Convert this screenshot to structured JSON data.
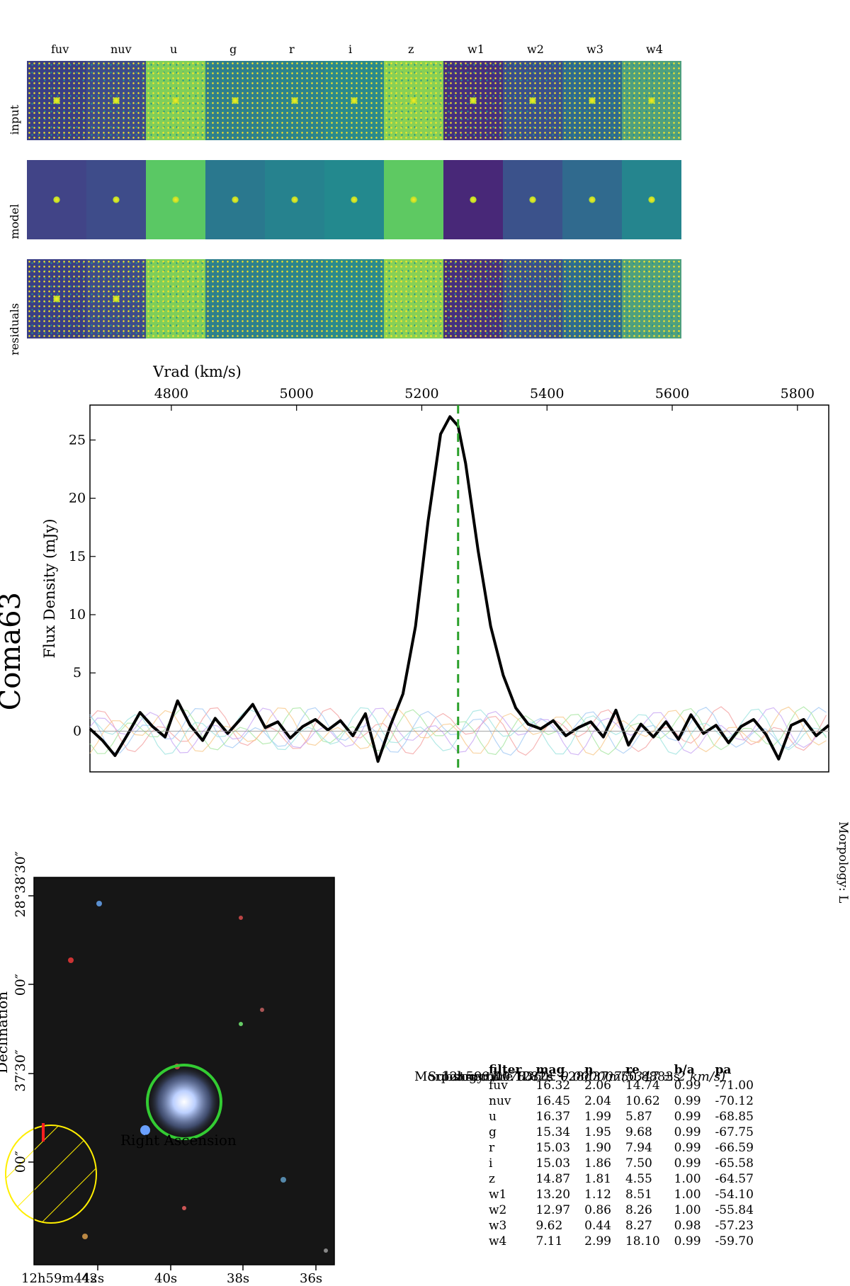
{
  "title": "Coma63",
  "sky_image": {
    "ylabel": "Declination",
    "xlabel": "Right Ascension",
    "y_ticks": [
      "28°38′30″",
      "00″",
      "37′30″",
      "00″"
    ],
    "x_ticks": [
      "12h59m44s",
      "42s",
      "40s",
      "38s",
      "36s"
    ],
    "colors": {
      "circle": "#33cc33",
      "beam": "#ffee00",
      "marker": "#ff2020",
      "background": "#161616"
    }
  },
  "cutouts": {
    "filters": [
      "fuv",
      "nuv",
      "u",
      "g",
      "r",
      "i",
      "z",
      "w1",
      "w2",
      "w3",
      "w4"
    ],
    "row_labels": [
      "input",
      "model",
      "residuals"
    ],
    "model_colors": [
      "#414487",
      "#3e4c8a",
      "#5ac864",
      "#2a788e",
      "#26828e",
      "#23898e",
      "#5ec962",
      "#482878",
      "#3b528b",
      "#306a8e",
      "#25858e"
    ],
    "input_colors": [
      "#3a3f85",
      "#3e4c8a",
      "#7fce5a",
      "#2f7f8c",
      "#2d838c",
      "#2c8a8c",
      "#88d055",
      "#46307e",
      "#3a4f8b",
      "#2f6b8e",
      "#4fa07f"
    ]
  },
  "spectrum": {
    "xlabel": "Vrad (km/s)",
    "ylabel": "Flux Density (mJy)",
    "x_ticks": [
      "4800",
      "5000",
      "5200",
      "5400",
      "5600",
      "5800"
    ],
    "y_ticks": [
      "0",
      "5",
      "10",
      "15",
      "20",
      "25"
    ],
    "line_color": "#2ca02c"
  },
  "info": {
    "morphology": "Morpology: L",
    "substructure": "Substructure ID: 0",
    "coords": "12h59m40.1282s +28d37m50.8883s",
    "redshift": "z = 0.017836 ± 0.000007(5347 ± 2 km/s)"
  },
  "table": {
    "headers": [
      "filter",
      "mag",
      "n",
      "re",
      "b/a",
      "pa"
    ],
    "rows": [
      [
        "fuv",
        "16.32",
        "2.06",
        "14.74",
        "0.99",
        "-71.00"
      ],
      [
        "nuv",
        "16.45",
        "2.04",
        "10.62",
        "0.99",
        "-70.12"
      ],
      [
        "u",
        "16.37",
        "1.99",
        "5.87",
        "0.99",
        "-68.85"
      ],
      [
        "g",
        "15.34",
        "1.95",
        "9.68",
        "0.99",
        "-67.75"
      ],
      [
        "r",
        "15.03",
        "1.90",
        "7.94",
        "0.99",
        "-66.59"
      ],
      [
        "i",
        "15.03",
        "1.86",
        "7.50",
        "0.99",
        "-65.58"
      ],
      [
        "z",
        "14.87",
        "1.81",
        "4.55",
        "1.00",
        "-64.57"
      ],
      [
        "w1",
        "13.20",
        "1.12",
        "8.51",
        "1.00",
        "-54.10"
      ],
      [
        "w2",
        "12.97",
        "0.86",
        "8.26",
        "1.00",
        "-55.84"
      ],
      [
        "w3",
        "9.62",
        "0.44",
        "8.27",
        "0.98",
        "-57.23"
      ],
      [
        "w4",
        "7.11",
        "2.99",
        "18.10",
        "0.99",
        "-59.70"
      ]
    ]
  },
  "chart_data": {
    "type": "line",
    "xlabel": "Vrad (km/s)",
    "ylabel": "Flux Density (mJy)",
    "xlim": [
      4670,
      5850
    ],
    "ylim": [
      -3.5,
      28
    ],
    "vline_x": 5258,
    "series": [
      {
        "values_x": [
          4670,
          4690,
          4710,
          4730,
          4750,
          4770,
          4790,
          4810,
          4830,
          4850,
          4870,
          4890,
          4910,
          4930,
          4950,
          4970,
          4990,
          5010,
          5030,
          5050,
          5070,
          5090,
          5110,
          5130,
          5150,
          5170,
          5190,
          5210,
          5230,
          5245,
          5258,
          5270,
          5290,
          5310,
          5330,
          5350,
          5370,
          5390,
          5410,
          5430,
          5450,
          5470,
          5490,
          5510,
          5530,
          5550,
          5570,
          5590,
          5610,
          5630,
          5650,
          5670,
          5690,
          5710,
          5730,
          5750,
          5770,
          5790,
          5810,
          5830,
          5850
        ],
        "values_y": [
          0.2,
          -0.8,
          -2.1,
          -0.3,
          1.6,
          0.4,
          -0.5,
          2.6,
          0.5,
          -0.8,
          1.1,
          -0.2,
          1.0,
          2.3,
          0.3,
          0.8,
          -0.6,
          0.4,
          1.0,
          0.1,
          0.9,
          -0.4,
          1.5,
          -2.6,
          0.5,
          3.2,
          9.0,
          18.0,
          25.5,
          27.0,
          26.2,
          23.0,
          15.5,
          9.0,
          4.8,
          2.0,
          0.6,
          0.2,
          0.9,
          -0.4,
          0.3,
          0.8,
          -0.5,
          1.8,
          -1.2,
          0.6,
          -0.5,
          0.8,
          -0.7,
          1.4,
          -0.2,
          0.5,
          -1.0,
          0.4,
          1.0,
          -0.3,
          -2.4,
          0.5,
          1.0,
          -0.4,
          0.5
        ]
      }
    ]
  }
}
